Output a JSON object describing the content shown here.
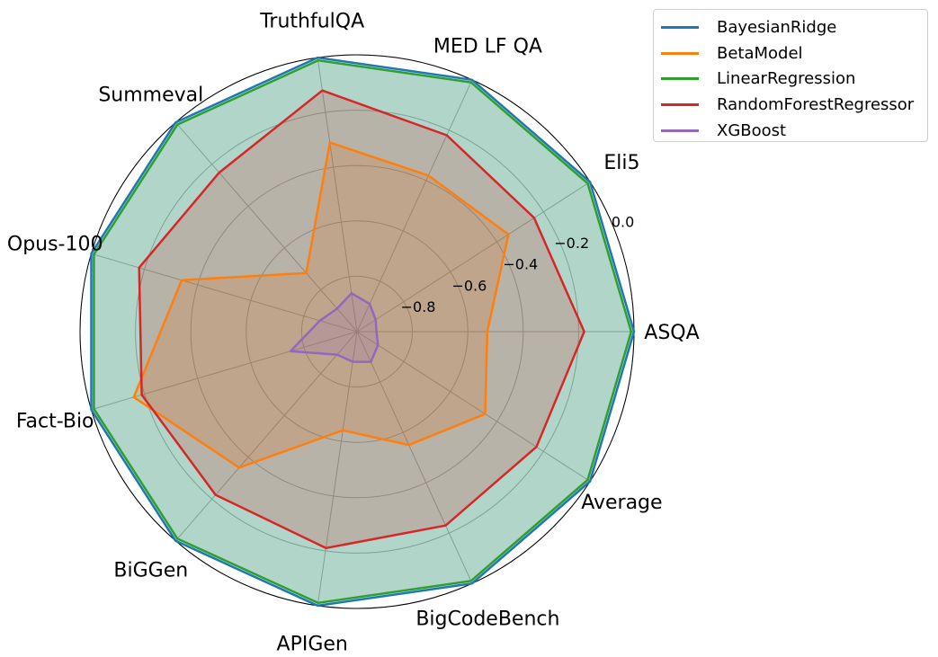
{
  "chart_data": {
    "type": "radar",
    "axes": [
      "ASQA",
      "Eli5",
      "MED LF QA",
      "TruthfulQA",
      "Summeval",
      "Opus-100",
      "Fact-Bio",
      "BiGGen",
      "APIGen",
      "BigCodeBench",
      "Average"
    ],
    "rlim": [
      -1.0,
      0.0
    ],
    "rticks": [
      -0.8,
      -0.6,
      -0.4,
      -0.2,
      0.0
    ],
    "rtick_labels": [
      "−0.8",
      "−0.6",
      "−0.4",
      "−0.2",
      "0.0"
    ],
    "grid": true,
    "legend_position": "upper-right-outside",
    "series": [
      {
        "name": "BayesianRidge",
        "color": "#1f77b4",
        "fill": false,
        "values": [
          0.0,
          0.0,
          0.0,
          0.0,
          0.0,
          0.0,
          0.0,
          0.0,
          0.0,
          0.0,
          0.0
        ]
      },
      {
        "name": "BetaModel",
        "color": "#ff7f0e",
        "fill": true,
        "values": [
          -0.53,
          -0.35,
          -0.38,
          -0.31,
          -0.72,
          -0.34,
          -0.16,
          -0.35,
          -0.64,
          -0.55,
          -0.45
        ]
      },
      {
        "name": "LinearRegression",
        "color": "#2ca02c",
        "fill": true,
        "values": [
          -0.01,
          -0.01,
          -0.01,
          -0.01,
          -0.01,
          -0.01,
          -0.01,
          -0.01,
          -0.01,
          -0.01,
          -0.01
        ]
      },
      {
        "name": "RandomForestRegressor",
        "color": "#d62728",
        "fill": false,
        "values": [
          -0.18,
          -0.24,
          -0.22,
          -0.12,
          -0.24,
          -0.18,
          -0.19,
          -0.22,
          -0.21,
          -0.23,
          -0.23
        ]
      },
      {
        "name": "XGBoost",
        "color": "#9467bd",
        "fill": false,
        "values": [
          -0.93,
          -0.92,
          -0.89,
          -0.86,
          -0.89,
          -0.86,
          -0.75,
          -0.89,
          -0.89,
          -0.88,
          -0.91
        ]
      }
    ]
  }
}
